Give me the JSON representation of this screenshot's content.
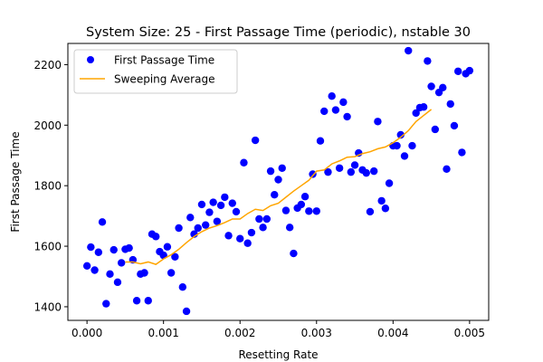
{
  "chart_data": {
    "type": "scatter",
    "title": "System Size: 25 - First Passage Time (periodic), nstable 30",
    "xlabel": "Resetting Rate",
    "ylabel": "First Passage Time",
    "xlim": [
      -0.00025,
      0.00525
    ],
    "ylim": [
      1355,
      2270
    ],
    "xticks": [
      0.0,
      0.001,
      0.002,
      0.003,
      0.004,
      0.005
    ],
    "xtick_labels": [
      "0.000",
      "0.001",
      "0.002",
      "0.003",
      "0.004",
      "0.005"
    ],
    "yticks": [
      1400,
      1600,
      1800,
      2000,
      2200
    ],
    "ytick_labels": [
      "1400",
      "1600",
      "1800",
      "2000",
      "2200"
    ],
    "legend_position": "top-left",
    "legend": [
      {
        "label": "First Passage Time",
        "kind": "marker",
        "color": "#0000ff"
      },
      {
        "label": "Sweeping Average",
        "kind": "line",
        "color": "#ffa500"
      }
    ],
    "series": [
      {
        "name": "First Passage Time",
        "type": "scatter",
        "color": "#0000ff",
        "points": [
          [
            0.0,
            1535
          ],
          [
            5e-05,
            1597
          ],
          [
            0.0001,
            1521
          ],
          [
            0.00015,
            1580
          ],
          [
            0.0002,
            1680
          ],
          [
            0.00025,
            1410
          ],
          [
            0.0003,
            1508
          ],
          [
            0.00035,
            1588
          ],
          [
            0.0004,
            1481
          ],
          [
            0.00045,
            1545
          ],
          [
            0.0005,
            1590
          ],
          [
            0.00055,
            1594
          ],
          [
            0.0006,
            1555
          ],
          [
            0.00065,
            1420
          ],
          [
            0.0007,
            1508
          ],
          [
            0.00075,
            1512
          ],
          [
            0.0008,
            1420
          ],
          [
            0.00085,
            1640
          ],
          [
            0.0009,
            1632
          ],
          [
            0.00095,
            1582
          ],
          [
            0.001,
            1570
          ],
          [
            0.00105,
            1598
          ],
          [
            0.0011,
            1512
          ],
          [
            0.00115,
            1565
          ],
          [
            0.0012,
            1660
          ],
          [
            0.00125,
            1465
          ],
          [
            0.0013,
            1385
          ],
          [
            0.00135,
            1695
          ],
          [
            0.0014,
            1640
          ],
          [
            0.00145,
            1660
          ],
          [
            0.0015,
            1738
          ],
          [
            0.00155,
            1670
          ],
          [
            0.0016,
            1712
          ],
          [
            0.00165,
            1745
          ],
          [
            0.0017,
            1682
          ],
          [
            0.00175,
            1735
          ],
          [
            0.0018,
            1762
          ],
          [
            0.00185,
            1635
          ],
          [
            0.0019,
            1742
          ],
          [
            0.00195,
            1714
          ],
          [
            0.002,
            1625
          ],
          [
            0.00205,
            1876
          ],
          [
            0.0021,
            1610
          ],
          [
            0.00215,
            1645
          ],
          [
            0.0022,
            1950
          ],
          [
            0.00225,
            1690
          ],
          [
            0.0023,
            1662
          ],
          [
            0.00235,
            1690
          ],
          [
            0.0024,
            1848
          ],
          [
            0.00245,
            1770
          ],
          [
            0.0025,
            1820
          ],
          [
            0.00255,
            1858
          ],
          [
            0.0026,
            1718
          ],
          [
            0.00265,
            1662
          ],
          [
            0.0027,
            1576
          ],
          [
            0.00275,
            1726
          ],
          [
            0.0028,
            1738
          ],
          [
            0.00285,
            1764
          ],
          [
            0.0029,
            1716
          ],
          [
            0.00295,
            1838
          ],
          [
            0.003,
            1716
          ],
          [
            0.00305,
            1948
          ],
          [
            0.0031,
            2046
          ],
          [
            0.00315,
            1845
          ],
          [
            0.0032,
            2096
          ],
          [
            0.00325,
            2050
          ],
          [
            0.0033,
            1858
          ],
          [
            0.00335,
            2076
          ],
          [
            0.0034,
            2028
          ],
          [
            0.00345,
            1845
          ],
          [
            0.0035,
            1868
          ],
          [
            0.00355,
            1908
          ],
          [
            0.0036,
            1852
          ],
          [
            0.00365,
            1842
          ],
          [
            0.0037,
            1714
          ],
          [
            0.00375,
            1848
          ],
          [
            0.0038,
            2012
          ],
          [
            0.00385,
            1750
          ],
          [
            0.0039,
            1725
          ],
          [
            0.00395,
            1808
          ],
          [
            0.004,
            1932
          ],
          [
            0.00405,
            1932
          ],
          [
            0.0041,
            1968
          ],
          [
            0.00415,
            1898
          ],
          [
            0.0042,
            2246
          ],
          [
            0.00425,
            1932
          ],
          [
            0.0043,
            2040
          ],
          [
            0.00435,
            2058
          ],
          [
            0.0044,
            2060
          ],
          [
            0.00445,
            2212
          ],
          [
            0.0045,
            2128
          ],
          [
            0.00455,
            1986
          ],
          [
            0.0046,
            2108
          ],
          [
            0.00465,
            2124
          ],
          [
            0.0047,
            1855
          ],
          [
            0.00475,
            2070
          ],
          [
            0.0048,
            1998
          ],
          [
            0.00485,
            2178
          ],
          [
            0.0049,
            1910
          ],
          [
            0.00495,
            2170
          ],
          [
            0.005,
            2180
          ]
        ]
      },
      {
        "name": "Sweeping Average",
        "type": "line",
        "color": "#ffa500",
        "points": [
          [
            0.0005,
            1548
          ],
          [
            0.0006,
            1548
          ],
          [
            0.0007,
            1542
          ],
          [
            0.0008,
            1548
          ],
          [
            0.0009,
            1540
          ],
          [
            0.001,
            1558
          ],
          [
            0.0011,
            1572
          ],
          [
            0.0012,
            1590
          ],
          [
            0.0013,
            1612
          ],
          [
            0.0014,
            1632
          ],
          [
            0.0015,
            1648
          ],
          [
            0.0016,
            1660
          ],
          [
            0.0017,
            1668
          ],
          [
            0.0018,
            1678
          ],
          [
            0.0019,
            1690
          ],
          [
            0.002,
            1690
          ],
          [
            0.0021,
            1708
          ],
          [
            0.0022,
            1722
          ],
          [
            0.0023,
            1718
          ],
          [
            0.0024,
            1734
          ],
          [
            0.0025,
            1742
          ],
          [
            0.0026,
            1762
          ],
          [
            0.0027,
            1782
          ],
          [
            0.0028,
            1800
          ],
          [
            0.0029,
            1818
          ],
          [
            0.003,
            1848
          ],
          [
            0.0031,
            1852
          ],
          [
            0.0032,
            1872
          ],
          [
            0.0033,
            1882
          ],
          [
            0.0034,
            1894
          ],
          [
            0.0035,
            1896
          ],
          [
            0.0036,
            1906
          ],
          [
            0.0037,
            1912
          ],
          [
            0.0038,
            1922
          ],
          [
            0.0039,
            1928
          ],
          [
            0.004,
            1942
          ],
          [
            0.0041,
            1960
          ],
          [
            0.0042,
            1982
          ],
          [
            0.0043,
            2012
          ],
          [
            0.0044,
            2032
          ],
          [
            0.0045,
            2052
          ]
        ]
      }
    ]
  }
}
